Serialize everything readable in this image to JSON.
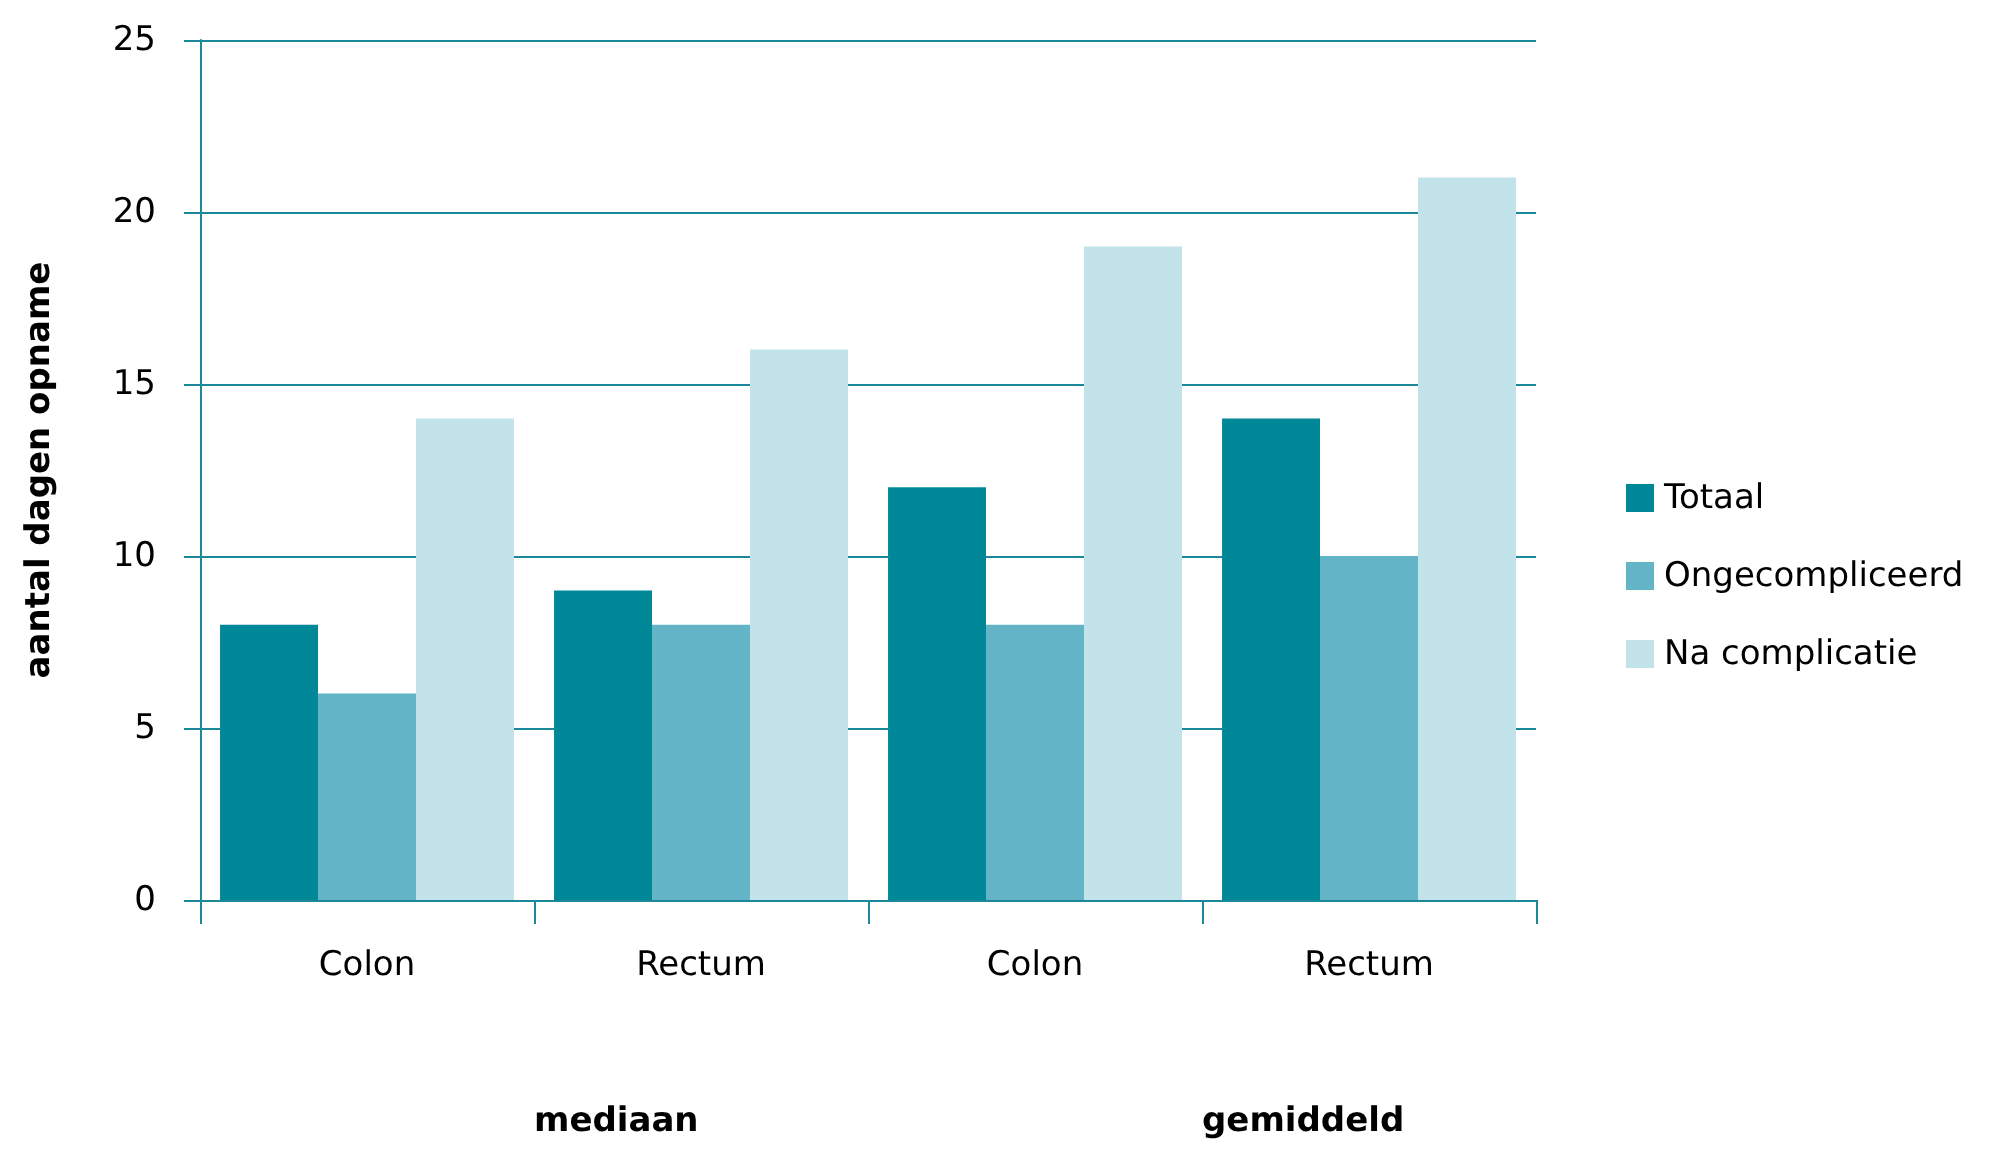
{
  "chart_data": {
    "type": "bar",
    "ylabel": "aantal dagen opname",
    "categories": [
      "Colon",
      "Rectum",
      "Colon",
      "Rectum"
    ],
    "series": [
      {
        "name": "Totaal",
        "color": "#008898",
        "values": [
          8,
          9,
          12,
          14
        ]
      },
      {
        "name": "Ongecompliceerd",
        "color": "#64b4c8",
        "values": [
          6,
          8,
          8,
          10
        ]
      },
      {
        "name": "Na complicatie",
        "color": "#c2e3e9",
        "values": [
          14,
          16,
          19,
          21
        ]
      }
    ],
    "ylim": [
      0,
      25
    ],
    "yticks": [
      0,
      5,
      10,
      15,
      20,
      25
    ],
    "grid": "y",
    "legend": "right",
    "annotations": [
      "mediaan",
      "gemiddeld"
    ]
  }
}
